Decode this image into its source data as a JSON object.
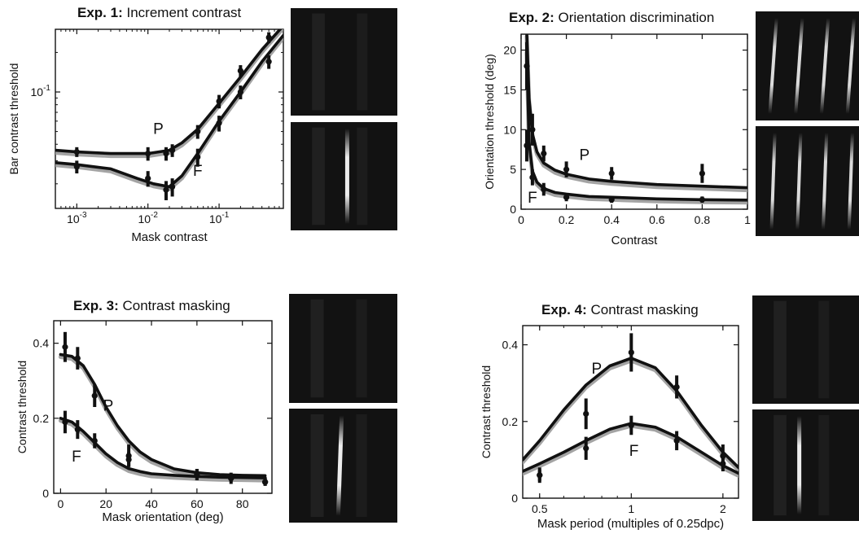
{
  "chart_data": [
    {
      "id": "exp1",
      "type": "line",
      "title_bold": "Exp. 1:",
      "title": "Increment contrast",
      "xlabel": "Mask contrast",
      "ylabel": "Bar contrast threshold",
      "xscale": "log",
      "yscale": "log",
      "xlim": [
        0.0005,
        0.8
      ],
      "ylim": [
        0.013,
        0.3
      ],
      "xticks": [
        {
          "v": 0.001,
          "b": "10",
          "e": "-3"
        },
        {
          "v": 0.01,
          "b": "10",
          "e": "-2"
        },
        {
          "v": 0.1,
          "b": "10",
          "e": "-1"
        }
      ],
      "yticks": [
        {
          "v": 0.1,
          "b": "10",
          "e": "-1"
        }
      ],
      "series": [
        {
          "name": "P",
          "color": "#111111",
          "model_color": "#9a9a9a",
          "x": [
            0.001,
            0.01,
            0.018,
            0.022,
            0.05,
            0.1,
            0.2,
            0.5
          ],
          "y": [
            0.035,
            0.034,
            0.034,
            0.036,
            0.05,
            0.085,
            0.145,
            0.26
          ],
          "err": [
            0.003,
            0.004,
            0.004,
            0.004,
            0.006,
            0.01,
            0.015,
            0.025
          ],
          "fit_x": [
            0.0005,
            0.001,
            0.003,
            0.01,
            0.02,
            0.03,
            0.05,
            0.1,
            0.2,
            0.4,
            0.8
          ],
          "fit_y": [
            0.036,
            0.035,
            0.034,
            0.034,
            0.036,
            0.041,
            0.052,
            0.082,
            0.13,
            0.21,
            0.32
          ],
          "label": "P",
          "label_x": 0.014,
          "label_y": 0.048
        },
        {
          "name": "F",
          "color": "#111111",
          "model_color": "#9a9a9a",
          "x": [
            0.001,
            0.01,
            0.018,
            0.022,
            0.05,
            0.1,
            0.2,
            0.5
          ],
          "y": [
            0.027,
            0.022,
            0.018,
            0.019,
            0.032,
            0.058,
            0.1,
            0.17
          ],
          "err": [
            0.003,
            0.003,
            0.003,
            0.003,
            0.005,
            0.008,
            0.012,
            0.02
          ],
          "fit_x": [
            0.0005,
            0.001,
            0.003,
            0.007,
            0.012,
            0.02,
            0.03,
            0.05,
            0.1,
            0.2,
            0.4,
            0.8
          ],
          "fit_y": [
            0.029,
            0.028,
            0.026,
            0.022,
            0.02,
            0.019,
            0.023,
            0.034,
            0.06,
            0.1,
            0.17,
            0.27
          ],
          "label": "F",
          "label_x": 0.05,
          "label_y": 0.023
        }
      ]
    },
    {
      "id": "exp2",
      "type": "line",
      "title_bold": "Exp. 2:",
      "title": "Orientation discrimination",
      "xlabel": "Contrast",
      "ylabel": "Orientation threshold (deg)",
      "xscale": "linear",
      "yscale": "linear",
      "xlim": [
        0,
        1
      ],
      "ylim": [
        0,
        22
      ],
      "xticks": [
        {
          "v": 0,
          "t": "0"
        },
        {
          "v": 0.2,
          "t": "0.2"
        },
        {
          "v": 0.4,
          "t": "0.4"
        },
        {
          "v": 0.6,
          "t": "0.6"
        },
        {
          "v": 0.8,
          "t": "0.8"
        },
        {
          "v": 1,
          "t": "1"
        }
      ],
      "yticks": [
        {
          "v": 0,
          "t": "0"
        },
        {
          "v": 5,
          "t": "5"
        },
        {
          "v": 10,
          "t": "10"
        },
        {
          "v": 15,
          "t": "15"
        },
        {
          "v": 20,
          "t": "20"
        }
      ],
      "series": [
        {
          "name": "P",
          "color": "#111111",
          "model_color": "#9a9a9a",
          "x": [
            0.025,
            0.05,
            0.1,
            0.2,
            0.4,
            0.8
          ],
          "y": [
            18,
            10,
            7,
            5,
            4.5,
            4.5
          ],
          "err": [
            3,
            2,
            1,
            1,
            0.8,
            1.2
          ],
          "fit_x": [
            0.025,
            0.035,
            0.05,
            0.07,
            0.1,
            0.15,
            0.2,
            0.3,
            0.4,
            0.6,
            0.8,
            1
          ],
          "fit_y": [
            22,
            14,
            9.5,
            7.2,
            5.8,
            4.9,
            4.4,
            3.8,
            3.5,
            3.1,
            2.9,
            2.7
          ],
          "label": "P",
          "label_x": 0.28,
          "label_y": 6.2
        },
        {
          "name": "F",
          "color": "#111111",
          "model_color": "#9a9a9a",
          "x": [
            0.025,
            0.05,
            0.1,
            0.2,
            0.4,
            0.8
          ],
          "y": [
            8,
            4,
            2.5,
            1.5,
            1.2,
            1.2
          ],
          "err": [
            2,
            1,
            0.8,
            0.5,
            0.4,
            0.4
          ],
          "fit_x": [
            0.025,
            0.035,
            0.05,
            0.07,
            0.1,
            0.15,
            0.2,
            0.3,
            0.4,
            0.6,
            0.8,
            1
          ],
          "fit_y": [
            20,
            8.5,
            4.8,
            3.4,
            2.6,
            2.1,
            1.9,
            1.6,
            1.5,
            1.3,
            1.2,
            1.15
          ],
          "label": "F",
          "label_x": 0.05,
          "label_y": 0.8
        }
      ]
    },
    {
      "id": "exp3",
      "type": "line",
      "title_bold": "Exp. 3:",
      "title": "Contrast masking",
      "xlabel": "Mask orientation (deg)",
      "ylabel": "Contrast threshold",
      "xscale": "linear",
      "yscale": "linear",
      "xlim": [
        -3,
        93
      ],
      "ylim": [
        0,
        0.46
      ],
      "xticks": [
        {
          "v": 0,
          "t": "0"
        },
        {
          "v": 20,
          "t": "20"
        },
        {
          "v": 40,
          "t": "40"
        },
        {
          "v": 60,
          "t": "60"
        },
        {
          "v": 80,
          "t": "80"
        }
      ],
      "yticks": [
        {
          "v": 0,
          "t": "0"
        },
        {
          "v": 0.2,
          "t": "0.2"
        },
        {
          "v": 0.4,
          "t": "0.4"
        }
      ],
      "series": [
        {
          "name": "P",
          "color": "#111111",
          "model_color": "#9a9a9a",
          "x": [
            2,
            7.5,
            15,
            30,
            60,
            75,
            90
          ],
          "y": [
            0.39,
            0.36,
            0.26,
            0.1,
            0.05,
            0.04,
            0.03
          ],
          "err": [
            0.04,
            0.03,
            0.03,
            0.03,
            0.015,
            0.015,
            0.01
          ],
          "fit_x": [
            0,
            5,
            10,
            15,
            20,
            25,
            30,
            35,
            40,
            50,
            60,
            70,
            80,
            90
          ],
          "fit_y": [
            0.37,
            0.365,
            0.34,
            0.29,
            0.23,
            0.18,
            0.14,
            0.11,
            0.09,
            0.065,
            0.055,
            0.05,
            0.048,
            0.047
          ],
          "label": "P",
          "label_x": 21,
          "label_y": 0.22
        },
        {
          "name": "F",
          "color": "#111111",
          "model_color": "#9a9a9a",
          "x": [
            2,
            7.5,
            15,
            30,
            60,
            75,
            90
          ],
          "y": [
            0.19,
            0.17,
            0.14,
            0.09,
            0.05,
            0.04,
            0.03
          ],
          "err": [
            0.03,
            0.025,
            0.02,
            0.02,
            0.015,
            0.01,
            0.01
          ],
          "fit_x": [
            0,
            5,
            10,
            15,
            20,
            25,
            30,
            35,
            40,
            50,
            60,
            70,
            80,
            90
          ],
          "fit_y": [
            0.2,
            0.19,
            0.165,
            0.135,
            0.105,
            0.082,
            0.066,
            0.058,
            0.052,
            0.048,
            0.045,
            0.043,
            0.042,
            0.041
          ],
          "label": "F",
          "label_x": 7,
          "label_y": 0.085
        }
      ]
    },
    {
      "id": "exp4",
      "type": "line",
      "title_bold": "Exp. 4:",
      "title": "Contrast masking",
      "xlabel": "Mask period (multiples of 0.25dpc)",
      "ylabel": "Contrast threshold",
      "xscale": "log",
      "yscale": "linear",
      "xlim": [
        0.44,
        2.25
      ],
      "ylim": [
        0,
        0.45
      ],
      "xticks": [
        {
          "v": 0.5,
          "t": "0.5"
        },
        {
          "v": 1,
          "t": "1"
        },
        {
          "v": 2,
          "t": "2"
        }
      ],
      "yticks": [
        {
          "v": 0,
          "t": "0"
        },
        {
          "v": 0.2,
          "t": "0.2"
        },
        {
          "v": 0.4,
          "t": "0.4"
        }
      ],
      "series": [
        {
          "name": "P",
          "color": "#111111",
          "model_color": "#9a9a9a",
          "x": [
            0.5,
            0.71,
            1,
            1.41,
            2
          ],
          "y": [
            0.06,
            0.22,
            0.38,
            0.29,
            0.11
          ],
          "err": [
            0.02,
            0.04,
            0.05,
            0.03,
            0.03
          ],
          "fit_x": [
            0.44,
            0.5,
            0.6,
            0.71,
            0.85,
            1,
            1.2,
            1.41,
            1.7,
            2,
            2.25
          ],
          "fit_y": [
            0.1,
            0.15,
            0.23,
            0.295,
            0.345,
            0.365,
            0.34,
            0.28,
            0.19,
            0.12,
            0.08
          ],
          "label": "P",
          "label_x": 0.77,
          "label_y": 0.325
        },
        {
          "name": "F",
          "color": "#111111",
          "model_color": "#9a9a9a",
          "x": [
            0.5,
            0.71,
            1,
            1.41,
            2
          ],
          "y": [
            0.06,
            0.13,
            0.19,
            0.15,
            0.09
          ],
          "err": [
            0.015,
            0.03,
            0.025,
            0.025,
            0.02
          ],
          "fit_x": [
            0.44,
            0.5,
            0.6,
            0.71,
            0.85,
            1,
            1.2,
            1.41,
            1.7,
            2,
            2.25
          ],
          "fit_y": [
            0.07,
            0.09,
            0.12,
            0.15,
            0.18,
            0.195,
            0.185,
            0.16,
            0.12,
            0.085,
            0.065
          ],
          "label": "F",
          "label_x": 1.02,
          "label_y": 0.11
        }
      ]
    }
  ],
  "stimuli": [
    {
      "id": "exp1-top",
      "bars": [],
      "faint": true
    },
    {
      "id": "exp1-bottom",
      "bars": [
        {
          "pos": 0.53,
          "w": 5,
          "o": 0.92
        }
      ],
      "faint": true
    },
    {
      "id": "exp2-top",
      "bars": [
        {
          "pos": 0.17,
          "w": 4,
          "o": 0.85
        },
        {
          "pos": 0.42,
          "w": 4,
          "o": 0.85
        },
        {
          "pos": 0.67,
          "w": 4,
          "o": 0.85
        },
        {
          "pos": 0.92,
          "w": 4,
          "o": 0.85
        }
      ],
      "tilt": 4
    },
    {
      "id": "exp2-bottom",
      "bars": [
        {
          "pos": 0.17,
          "w": 4,
          "o": 0.85
        },
        {
          "pos": 0.42,
          "w": 4,
          "o": 0.85
        },
        {
          "pos": 0.67,
          "w": 4,
          "o": 0.85
        },
        {
          "pos": 0.92,
          "w": 4,
          "o": 0.85
        }
      ],
      "tilt": 2
    },
    {
      "id": "exp3-top",
      "bars": [],
      "faint": true
    },
    {
      "id": "exp3-bottom",
      "bars": [
        {
          "pos": 0.47,
          "w": 5,
          "o": 0.92
        }
      ],
      "faint": true,
      "tilt": 2
    },
    {
      "id": "exp4-top",
      "bars": [],
      "faint": true
    },
    {
      "id": "exp4-bottom",
      "bars": [
        {
          "pos": 0.44,
          "w": 5,
          "o": 0.92
        }
      ],
      "faint": true
    }
  ]
}
